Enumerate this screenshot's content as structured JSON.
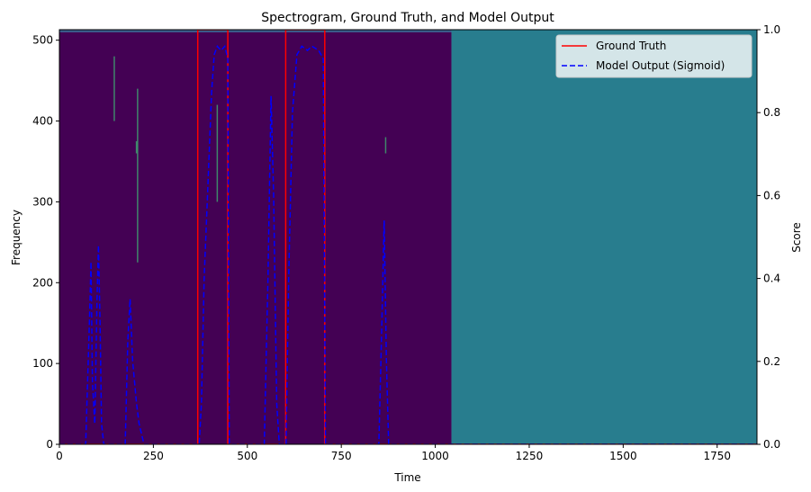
{
  "chart_data": {
    "type": "line",
    "title": "Spectrogram, Ground Truth, and Model Output",
    "xlabel": "Time",
    "ylabel_left": "Frequency",
    "ylabel_right": "Score",
    "xlim": [
      0,
      1856
    ],
    "ylim_left": [
      0,
      513
    ],
    "ylim_right": [
      0,
      1
    ],
    "x_ticks": [
      0,
      250,
      500,
      750,
      1000,
      1250,
      1500,
      1750
    ],
    "y_ticks_left": [
      0,
      100,
      200,
      300,
      400,
      500
    ],
    "y_ticks_right": [
      "0.0",
      "0.2",
      "0.4",
      "0.6",
      "0.8",
      "1.0"
    ],
    "legend": {
      "position": "upper right",
      "entries": [
        {
          "label": "Ground Truth",
          "color": "#ff0000",
          "style": "solid"
        },
        {
          "label": "Model Output (Sigmoid)",
          "color": "#0000ff",
          "style": "dashed"
        }
      ]
    },
    "spectrogram": {
      "colormap": "viridis",
      "background_color": "#440154",
      "padding_start": 1043,
      "padding_color": "#287d8e",
      "bright_streaks": [
        {
          "x": 146,
          "f_low": 400,
          "f_high": 480
        },
        {
          "x": 205,
          "f_low": 360,
          "f_high": 375
        },
        {
          "x": 208,
          "f_low": 225,
          "f_high": 440
        },
        {
          "x": 420,
          "f_low": 300,
          "f_high": 420
        },
        {
          "x": 868,
          "f_low": 360,
          "f_high": 380
        }
      ]
    },
    "series": [
      {
        "name": "Ground Truth",
        "color": "#ff0000",
        "segments": [
          {
            "x_start": 0,
            "x_end": 368,
            "value": 0.0
          },
          {
            "x_start": 368,
            "x_end": 448,
            "value": 1.0
          },
          {
            "x_start": 448,
            "x_end": 602,
            "value": 0.0
          },
          {
            "x_start": 602,
            "x_end": 706,
            "value": 1.0
          },
          {
            "x_start": 706,
            "x_end": 1856,
            "value": 0.0
          }
        ]
      },
      {
        "name": "Model Output (Sigmoid)",
        "color": "#0000ff",
        "points": [
          [
            0,
            0.0
          ],
          [
            70,
            0.0
          ],
          [
            80,
            0.3
          ],
          [
            84,
            0.44
          ],
          [
            88,
            0.15
          ],
          [
            94,
            0.05
          ],
          [
            100,
            0.35
          ],
          [
            104,
            0.48
          ],
          [
            108,
            0.3
          ],
          [
            112,
            0.05
          ],
          [
            118,
            0.0
          ],
          [
            175,
            0.0
          ],
          [
            182,
            0.25
          ],
          [
            188,
            0.35
          ],
          [
            195,
            0.2
          ],
          [
            205,
            0.1
          ],
          [
            212,
            0.05
          ],
          [
            225,
            0.0
          ],
          [
            372,
            0.0
          ],
          [
            378,
            0.1
          ],
          [
            385,
            0.4
          ],
          [
            395,
            0.62
          ],
          [
            405,
            0.85
          ],
          [
            412,
            0.94
          ],
          [
            420,
            0.96
          ],
          [
            430,
            0.95
          ],
          [
            440,
            0.96
          ],
          [
            448,
            0.93
          ],
          [
            452,
            0.0
          ],
          [
            545,
            0.0
          ],
          [
            555,
            0.4
          ],
          [
            563,
            0.84
          ],
          [
            570,
            0.6
          ],
          [
            578,
            0.1
          ],
          [
            585,
            0.0
          ],
          [
            603,
            0.0
          ],
          [
            610,
            0.4
          ],
          [
            620,
            0.8
          ],
          [
            632,
            0.94
          ],
          [
            645,
            0.96
          ],
          [
            660,
            0.95
          ],
          [
            672,
            0.96
          ],
          [
            690,
            0.95
          ],
          [
            702,
            0.93
          ],
          [
            708,
            0.0
          ],
          [
            850,
            0.0
          ],
          [
            858,
            0.3
          ],
          [
            864,
            0.54
          ],
          [
            870,
            0.2
          ],
          [
            876,
            0.0
          ],
          [
            1856,
            0.0
          ]
        ]
      }
    ]
  }
}
